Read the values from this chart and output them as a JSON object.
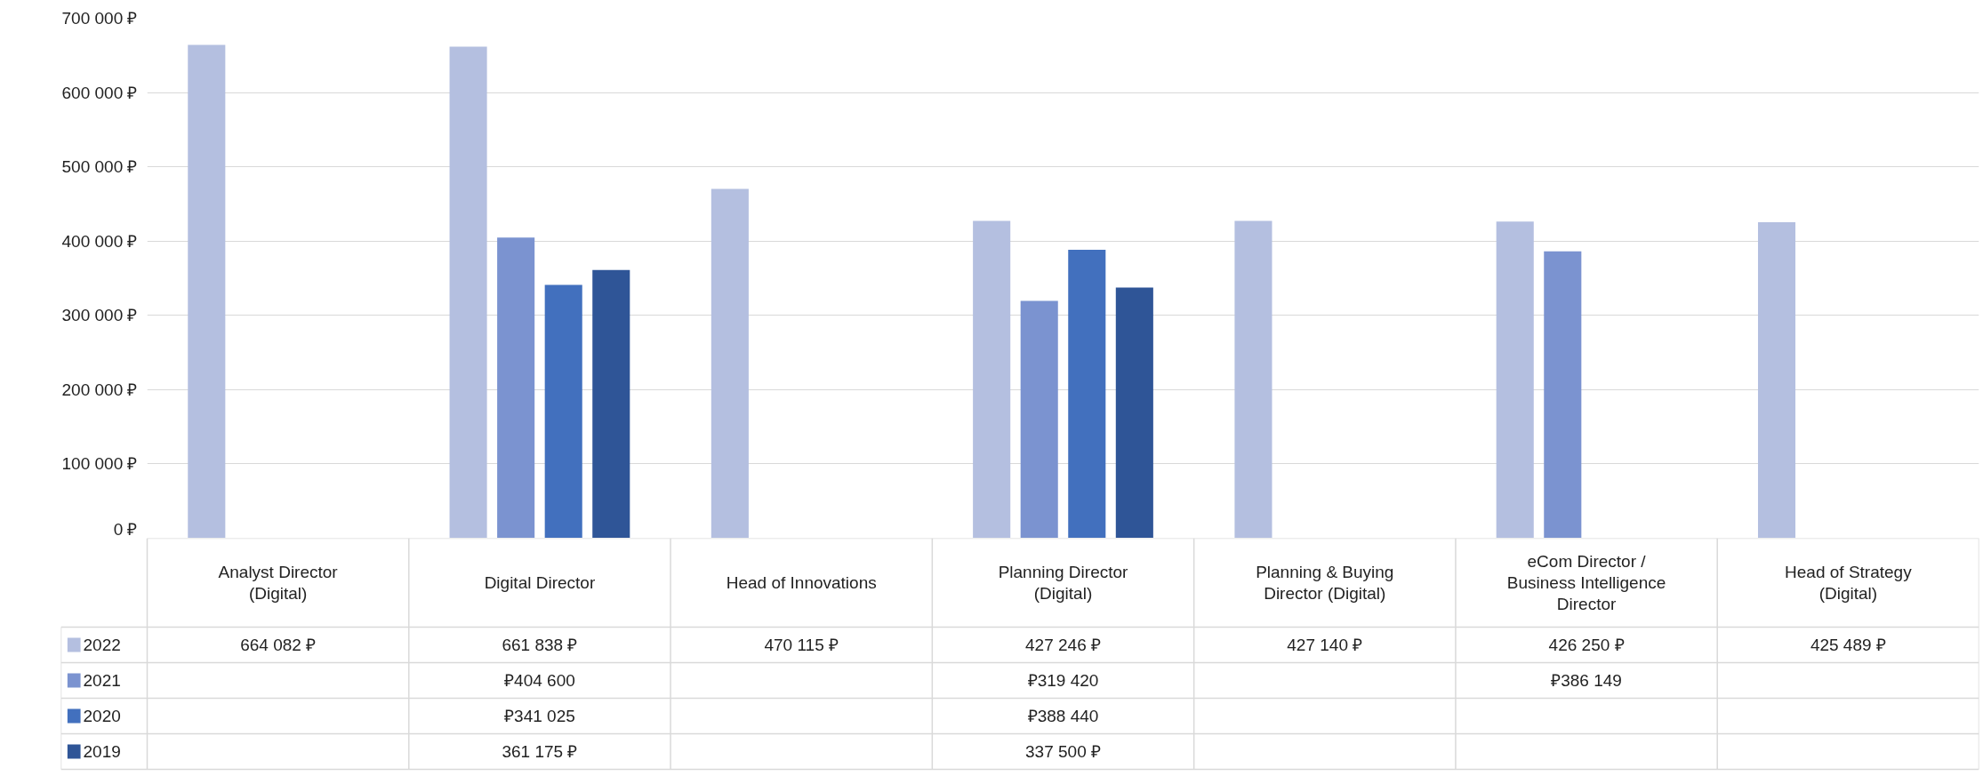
{
  "chart_data": {
    "type": "bar",
    "categories": [
      "Analyst Director (Digital)",
      "Digital Director",
      "Head of Innovations",
      "Planning Director (Digital)",
      "Planning & Buying Director (Digital)",
      "eCom Director / Business Intelligence Director",
      "Head of Strategy (Digital)"
    ],
    "series": [
      {
        "name": "2022",
        "color": "#b4bfe0",
        "values": [
          664082,
          661838,
          470115,
          427246,
          427140,
          426250,
          425489
        ],
        "value_labels": [
          "664 082 ₽",
          "661 838 ₽",
          "470 115 ₽",
          "427 246 ₽",
          "427 140 ₽",
          "426 250 ₽",
          "425 489 ₽"
        ]
      },
      {
        "name": "2021",
        "color": "#7b93d0",
        "values": [
          null,
          404600,
          null,
          319420,
          null,
          386149,
          null
        ],
        "value_labels": [
          null,
          "₽404 600",
          null,
          "₽319 420",
          null,
          "₽386 149",
          null
        ]
      },
      {
        "name": "2020",
        "color": "#4270be",
        "values": [
          null,
          341025,
          null,
          388440,
          null,
          null,
          null
        ],
        "value_labels": [
          null,
          "₽341 025",
          null,
          "₽388 440",
          null,
          null,
          null
        ]
      },
      {
        "name": "2019",
        "color": "#2f5597",
        "values": [
          null,
          361175,
          null,
          337500,
          null,
          null,
          null
        ],
        "value_labels": [
          null,
          "361 175 ₽",
          null,
          "337 500 ₽",
          null,
          null,
          null
        ]
      }
    ],
    "ylim": [
      0,
      700000
    ],
    "yticks": [
      {
        "value": 0,
        "label": "0 ₽"
      },
      {
        "value": 100000,
        "label": "100 000 ₽"
      },
      {
        "value": 200000,
        "label": "200 000 ₽"
      },
      {
        "value": 300000,
        "label": "300 000 ₽"
      },
      {
        "value": 400000,
        "label": "400 000 ₽"
      },
      {
        "value": 500000,
        "label": "500 000 ₽"
      },
      {
        "value": 600000,
        "label": "600 000 ₽"
      },
      {
        "value": 700000,
        "label": "700 000 ₽"
      }
    ],
    "grid": "y",
    "legend": "bottom"
  }
}
